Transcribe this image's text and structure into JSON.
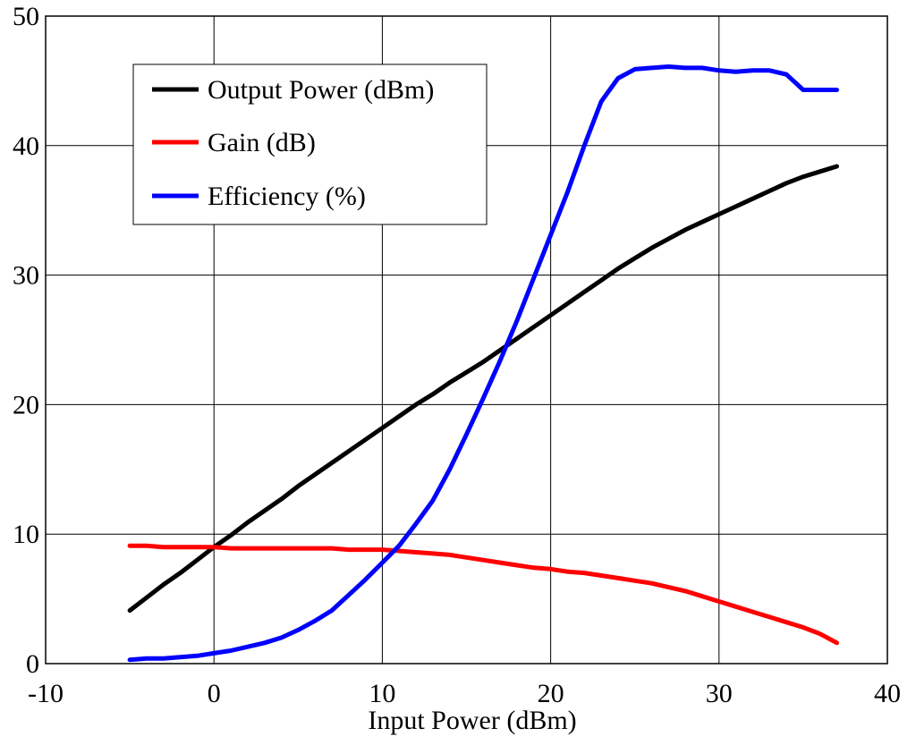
{
  "chart_data": {
    "type": "line",
    "title": "",
    "xlabel": "Input Power (dBm)",
    "ylabel": "",
    "xlim": [
      -10,
      40
    ],
    "ylim": [
      0,
      50
    ],
    "xticks": [
      "-10",
      "0",
      "10",
      "20",
      "30",
      "40"
    ],
    "yticks": [
      "0",
      "10",
      "20",
      "30",
      "40",
      "50"
    ],
    "grid": true,
    "legend_position": "top-left",
    "series": [
      {
        "name": "Output Power (dBm)",
        "color": "#000000",
        "x": [
          -5,
          -4,
          -3,
          -2,
          -1,
          0,
          1,
          2,
          3,
          4,
          5,
          6,
          7,
          8,
          9,
          10,
          11,
          12,
          13,
          14,
          15,
          16,
          17,
          18,
          19,
          20,
          21,
          22,
          23,
          24,
          25,
          26,
          27,
          28,
          29,
          30,
          31,
          32,
          33,
          34,
          35,
          36,
          37
        ],
        "y": [
          4.1,
          5.1,
          6.1,
          7.0,
          8.0,
          9.0,
          9.9,
          10.9,
          11.8,
          12.7,
          13.7,
          14.6,
          15.5,
          16.4,
          17.3,
          18.2,
          19.1,
          20.0,
          20.8,
          21.7,
          22.5,
          23.3,
          24.2,
          25.1,
          26.0,
          26.9,
          27.8,
          28.7,
          29.6,
          30.5,
          31.3,
          32.1,
          32.8,
          33.5,
          34.1,
          34.7,
          35.3,
          35.9,
          36.5,
          37.1,
          37.6,
          38.0,
          38.4
        ]
      },
      {
        "name": "Gain (dB)",
        "color": "#ff0000",
        "x": [
          -5,
          -4,
          -3,
          -2,
          -1,
          0,
          1,
          2,
          3,
          4,
          5,
          6,
          7,
          8,
          9,
          10,
          11,
          12,
          13,
          14,
          15,
          16,
          17,
          18,
          19,
          20,
          21,
          22,
          23,
          24,
          25,
          26,
          27,
          28,
          29,
          30,
          31,
          32,
          33,
          34,
          35,
          36,
          37
        ],
        "y": [
          9.1,
          9.1,
          9.0,
          9.0,
          9.0,
          9.0,
          8.9,
          8.9,
          8.9,
          8.9,
          8.9,
          8.9,
          8.9,
          8.8,
          8.8,
          8.8,
          8.7,
          8.6,
          8.5,
          8.4,
          8.2,
          8.0,
          7.8,
          7.6,
          7.4,
          7.3,
          7.1,
          7.0,
          6.8,
          6.6,
          6.4,
          6.2,
          5.9,
          5.6,
          5.2,
          4.8,
          4.4,
          4.0,
          3.6,
          3.2,
          2.8,
          2.3,
          1.6
        ]
      },
      {
        "name": "Efficiency (%)",
        "color": "#0000ff",
        "x": [
          -5,
          -4,
          -3,
          -2,
          -1,
          0,
          1,
          2,
          3,
          4,
          5,
          6,
          7,
          8,
          9,
          10,
          11,
          12,
          13,
          14,
          15,
          16,
          17,
          18,
          19,
          20,
          21,
          22,
          23,
          24,
          25,
          26,
          27,
          28,
          29,
          30,
          31,
          32,
          33,
          34,
          35,
          36,
          37
        ],
        "y": [
          0.3,
          0.4,
          0.4,
          0.5,
          0.6,
          0.8,
          1.0,
          1.3,
          1.6,
          2.0,
          2.6,
          3.3,
          4.1,
          5.3,
          6.5,
          7.8,
          9.1,
          10.8,
          12.6,
          15.0,
          17.7,
          20.5,
          23.4,
          26.5,
          29.8,
          33.1,
          36.4,
          40.0,
          43.4,
          45.2,
          45.9,
          46.0,
          46.1,
          46.0,
          46.0,
          45.8,
          45.7,
          45.8,
          45.8,
          45.5,
          44.3,
          44.3,
          44.3
        ]
      }
    ]
  }
}
